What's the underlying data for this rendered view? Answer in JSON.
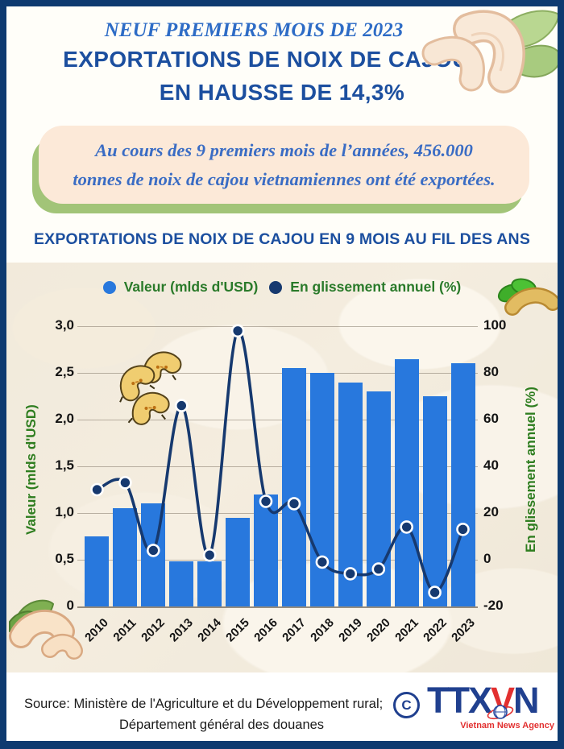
{
  "header": {
    "kicker": "NEUF PREMIERS MOIS DE 2023",
    "title_line1": "EXPORTATIONS DE NOIX DE CAJOU",
    "title_line2": "EN HAUSSE DE 14,3%"
  },
  "callout": {
    "line1": "Au cours des 9 premiers mois de l’années, 456.000",
    "line2": "tonnes de noix de cajou vietnamiennes ont été exportées."
  },
  "section_heading": "EXPORTATIONS DE NOIX DE CAJOU EN 9 MOIS AU FIL DES ANS",
  "chart_data": {
    "type": "bar+line",
    "title": "Exportations de noix de cajou en 9 mois au fil des ans",
    "categories": [
      "2010",
      "2011",
      "2012",
      "2013",
      "2014",
      "2015",
      "2016",
      "2017",
      "2018",
      "2019",
      "2020",
      "2021",
      "2022",
      "2023"
    ],
    "series": [
      {
        "name": "Valeur (mlds d'USD)",
        "type": "bar",
        "axis": "left",
        "color": "#2878dd",
        "values": [
          0.75,
          1.05,
          1.1,
          0.48,
          0.48,
          0.95,
          1.2,
          2.55,
          2.5,
          2.4,
          2.3,
          2.65,
          2.25,
          2.6
        ]
      },
      {
        "name": "En glissement annuel (%)",
        "type": "line",
        "axis": "right",
        "color": "#16396f",
        "values": [
          30,
          33,
          4,
          66,
          2,
          98,
          25,
          24,
          -1,
          -6,
          -4,
          14,
          -14,
          13
        ]
      }
    ],
    "left_axis": {
      "title": "Valeur (mlds d'USD)",
      "min": 0,
      "max": 3,
      "ticks": [
        "3,0",
        "2,5",
        "2,0",
        "1,5",
        "1,0",
        "0,5",
        "0"
      ]
    },
    "right_axis": {
      "title": "En glissement annuel (%)",
      "min": -20,
      "max": 100,
      "ticks": [
        "100",
        "80",
        "60",
        "40",
        "20",
        "0",
        "-20"
      ]
    },
    "legend_position": "top",
    "grid": true
  },
  "footer": {
    "source_line1": "Source: Ministère de l'Agriculture et du Développement rural;",
    "source_line2": "Département général des douanes",
    "copyright_symbol": "C",
    "logo": {
      "part1": "TTX",
      "part2": "V",
      "part3": "N",
      "caption": "Vietnam News Agency"
    }
  },
  "colors": {
    "frame": "#0e3a70",
    "title_blue": "#1c4f9f",
    "kicker_blue": "#2e6cc6",
    "callout_bg": "#fce9d8",
    "callout_shadow": "#a2c478",
    "callout_text": "#3a6cc4",
    "bar": "#2878dd",
    "line": "#16396f",
    "axis_green": "#2e7d1f",
    "legend_green": "#2a7a2a",
    "logo_navy": "#20408f",
    "logo_red": "#e23030"
  }
}
